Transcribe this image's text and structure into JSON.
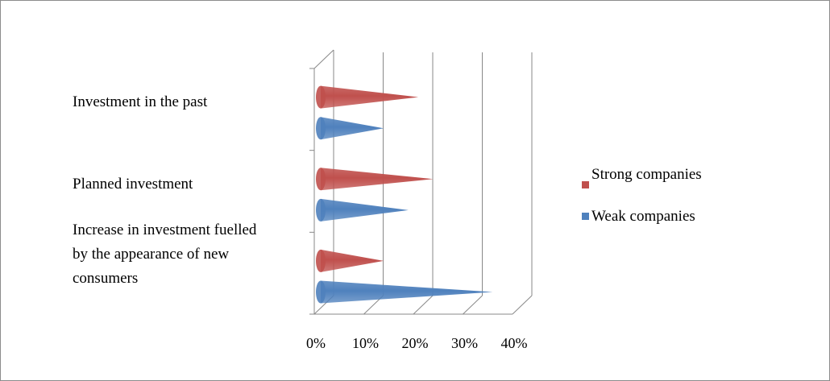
{
  "chart_data": {
    "type": "bar",
    "orientation": "horizontal",
    "style": "3d-cone",
    "categories": [
      "Investment in the past",
      "Planned investment",
      "Increase in investment fuelled by the appearance of new consumers"
    ],
    "category_lines": [
      [
        "Investment in the past"
      ],
      [
        "Planned investment"
      ],
      [
        "Increase in investment fuelled",
        "by the appearance of new",
        "consumers"
      ]
    ],
    "series": [
      {
        "name": "Strong companies",
        "color": "#c0504d",
        "values": [
          21,
          24,
          14
        ]
      },
      {
        "name": "Weak companies",
        "color": "#4f81bd",
        "values": [
          14,
          19,
          36
        ]
      }
    ],
    "x_ticks": [
      "0%",
      "10%",
      "20%",
      "30%",
      "40%"
    ],
    "xlim": [
      0,
      40
    ],
    "grid": true,
    "legend": "right"
  }
}
